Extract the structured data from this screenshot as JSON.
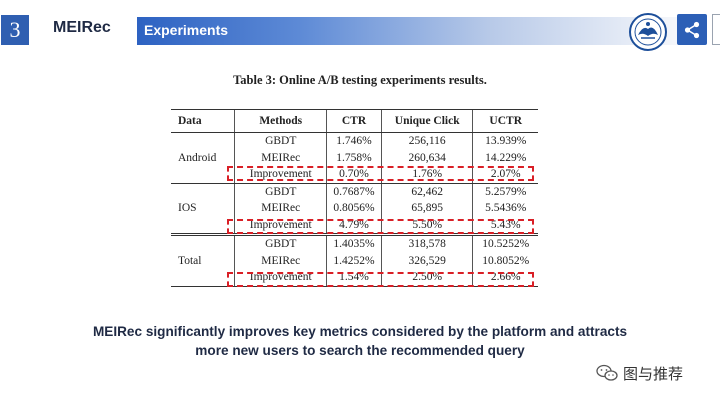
{
  "header": {
    "section_number": "3",
    "brand": "MEIRec",
    "section_title": "Experiments",
    "logo_icon": "university-seal-icon",
    "share_icon": "share-icon",
    "accent_color": "#2f5fb1"
  },
  "table": {
    "caption": "Table 3: Online A/B testing experiments results.",
    "columns": [
      "Data",
      "Methods",
      "CTR",
      "Unique Click",
      "UCTR"
    ],
    "groups": [
      {
        "data": "Android",
        "rows": [
          {
            "method": "GBDT",
            "ctr": "1.746%",
            "unique_click": "256,116",
            "uctr": "13.939%"
          },
          {
            "method": "MEIRec",
            "ctr": "1.758%",
            "unique_click": "260,634",
            "uctr": "14.229%"
          },
          {
            "method": "Improvement",
            "ctr": "0.70%",
            "unique_click": "1.76%",
            "uctr": "2.07%"
          }
        ]
      },
      {
        "data": "IOS",
        "rows": [
          {
            "method": "GBDT",
            "ctr": "0.7687%",
            "unique_click": "62,462",
            "uctr": "5.2579%"
          },
          {
            "method": "MEIRec",
            "ctr": "0.8056%",
            "unique_click": "65,895",
            "uctr": "5.5436%"
          },
          {
            "method": "Improvement",
            "ctr": "4.79%",
            "unique_click": "5.50%",
            "uctr": "5.43%"
          }
        ]
      },
      {
        "data": "Total",
        "rows": [
          {
            "method": "GBDT",
            "ctr": "1.4035%",
            "unique_click": "318,578",
            "uctr": "10.5252%"
          },
          {
            "method": "MEIRec",
            "ctr": "1.4252%",
            "unique_click": "326,529",
            "uctr": "10.8052%"
          },
          {
            "method": "Improvement",
            "ctr": "1.54%",
            "unique_click": "2.50%",
            "uctr": "2.66%"
          }
        ]
      }
    ],
    "highlight_color": "#d91f26"
  },
  "summary": {
    "line1": "MEIRec significantly improves key metrics considered by the platform and attracts",
    "line2": "more new users to search the recommended query"
  },
  "watermark": {
    "icon": "wechat-icon",
    "text": "图与推荐"
  }
}
